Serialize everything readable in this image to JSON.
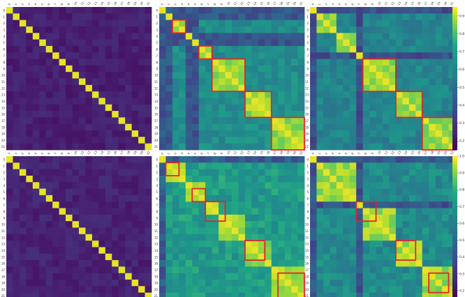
{
  "figure": {
    "panels": [
      {
        "id": "top-left",
        "row": 0,
        "col": 0,
        "n": 22,
        "base": 0.12,
        "noise": 0.1,
        "blocks": [],
        "highlights": [],
        "colorbar": false
      },
      {
        "id": "top-middle",
        "row": 0,
        "col": 1,
        "n": 22,
        "base": 0.45,
        "noise": 0.18,
        "blocks": [
          [
            2,
            3
          ],
          [
            6,
            7
          ],
          [
            8,
            12
          ],
          [
            13,
            16
          ],
          [
            17,
            21
          ]
        ],
        "highlights": [
          [
            2,
            3
          ],
          [
            6,
            7
          ],
          [
            8,
            12
          ],
          [
            13,
            16
          ],
          [
            17,
            21
          ]
        ],
        "colorbar": false
      },
      {
        "id": "top-right",
        "row": 0,
        "col": 2,
        "n": 22,
        "base": 0.4,
        "noise": 0.18,
        "blocks": [
          [
            1,
            3
          ],
          [
            4,
            6
          ],
          [
            8,
            12
          ],
          [
            13,
            16
          ],
          [
            17,
            21
          ]
        ],
        "highlights": [
          [
            8,
            12
          ],
          [
            13,
            16
          ],
          [
            17,
            21
          ]
        ],
        "colorbar": true
      },
      {
        "id": "bottom-left",
        "row": 1,
        "col": 0,
        "n": 22,
        "base": 0.14,
        "noise": 0.1,
        "blocks": [],
        "highlights": [],
        "colorbar": false
      },
      {
        "id": "bottom-middle",
        "row": 1,
        "col": 1,
        "n": 22,
        "base": 0.5,
        "noise": 0.2,
        "blocks": [
          [
            1,
            3
          ],
          [
            4,
            6
          ],
          [
            6,
            8
          ],
          [
            8,
            12
          ],
          [
            13,
            16
          ],
          [
            17,
            21
          ]
        ],
        "highlights": [
          [
            1,
            2
          ],
          [
            5,
            6
          ],
          [
            7,
            9
          ],
          [
            13,
            15
          ],
          [
            18,
            21
          ]
        ],
        "colorbar": false
      },
      {
        "id": "bottom-right",
        "row": 1,
        "col": 2,
        "n": 22,
        "base": 0.42,
        "noise": 0.2,
        "blocks": [
          [
            1,
            6
          ],
          [
            8,
            12
          ],
          [
            13,
            16
          ],
          [
            17,
            21
          ]
        ],
        "highlights": [
          [
            7,
            9
          ],
          [
            13,
            15
          ],
          [
            18,
            20
          ]
        ],
        "colorbar": true
      }
    ],
    "colorbars": [
      {
        "panel": "top-right",
        "ticks": [
          "0.2",
          "0.3",
          "0.4",
          "0.5",
          "0.6",
          "0.7",
          "0.8",
          "0.9"
        ],
        "range": [
          0.15,
          0.95
        ]
      },
      {
        "panel": "bottom-right",
        "ticks": [
          "0.2",
          "0.3",
          "0.4",
          "0.5",
          "0.6",
          "0.7",
          "0.8",
          "0.9",
          "1.0"
        ],
        "range": [
          0.15,
          1.0
        ]
      }
    ],
    "tick_labels": [
      "0",
      "1",
      "2",
      "3",
      "4",
      "5",
      "6",
      "7",
      "8",
      "9",
      "10",
      "11",
      "12",
      "13",
      "14",
      "15",
      "16",
      "17",
      "18",
      "19",
      "20",
      "21"
    ],
    "highlight_color": "#e3242b",
    "colormap": "viridis"
  },
  "chart_data": [
    {
      "type": "heatmap",
      "panel": "top-left",
      "rows": 22,
      "cols": 22,
      "colormap": "viridis",
      "diagonal": 1.0,
      "off_diagonal_range": [
        0.05,
        0.35
      ]
    },
    {
      "type": "heatmap",
      "panel": "top-middle",
      "rows": 22,
      "cols": 22,
      "colormap": "viridis",
      "highlighted_blocks": [
        [
          2,
          3
        ],
        [
          6,
          7
        ],
        [
          8,
          12
        ],
        [
          13,
          16
        ],
        [
          17,
          21
        ]
      ]
    },
    {
      "type": "heatmap",
      "panel": "top-right",
      "rows": 22,
      "cols": 22,
      "colormap": "viridis",
      "highlighted_blocks": [
        [
          8,
          12
        ],
        [
          13,
          16
        ],
        [
          17,
          21
        ]
      ],
      "colorbar_range": [
        0.15,
        0.95
      ]
    },
    {
      "type": "heatmap",
      "panel": "bottom-left",
      "rows": 22,
      "cols": 22,
      "colormap": "viridis",
      "diagonal": 1.0,
      "off_diagonal_range": [
        0.05,
        0.35
      ]
    },
    {
      "type": "heatmap",
      "panel": "bottom-middle",
      "rows": 22,
      "cols": 22,
      "colormap": "viridis",
      "highlighted_blocks": [
        [
          1,
          2
        ],
        [
          5,
          6
        ],
        [
          7,
          9
        ],
        [
          13,
          15
        ],
        [
          18,
          21
        ]
      ]
    },
    {
      "type": "heatmap",
      "panel": "bottom-right",
      "rows": 22,
      "cols": 22,
      "colormap": "viridis",
      "highlighted_blocks": [
        [
          7,
          9
        ],
        [
          13,
          15
        ],
        [
          18,
          20
        ]
      ],
      "colorbar_range": [
        0.15,
        1.0
      ]
    }
  ]
}
